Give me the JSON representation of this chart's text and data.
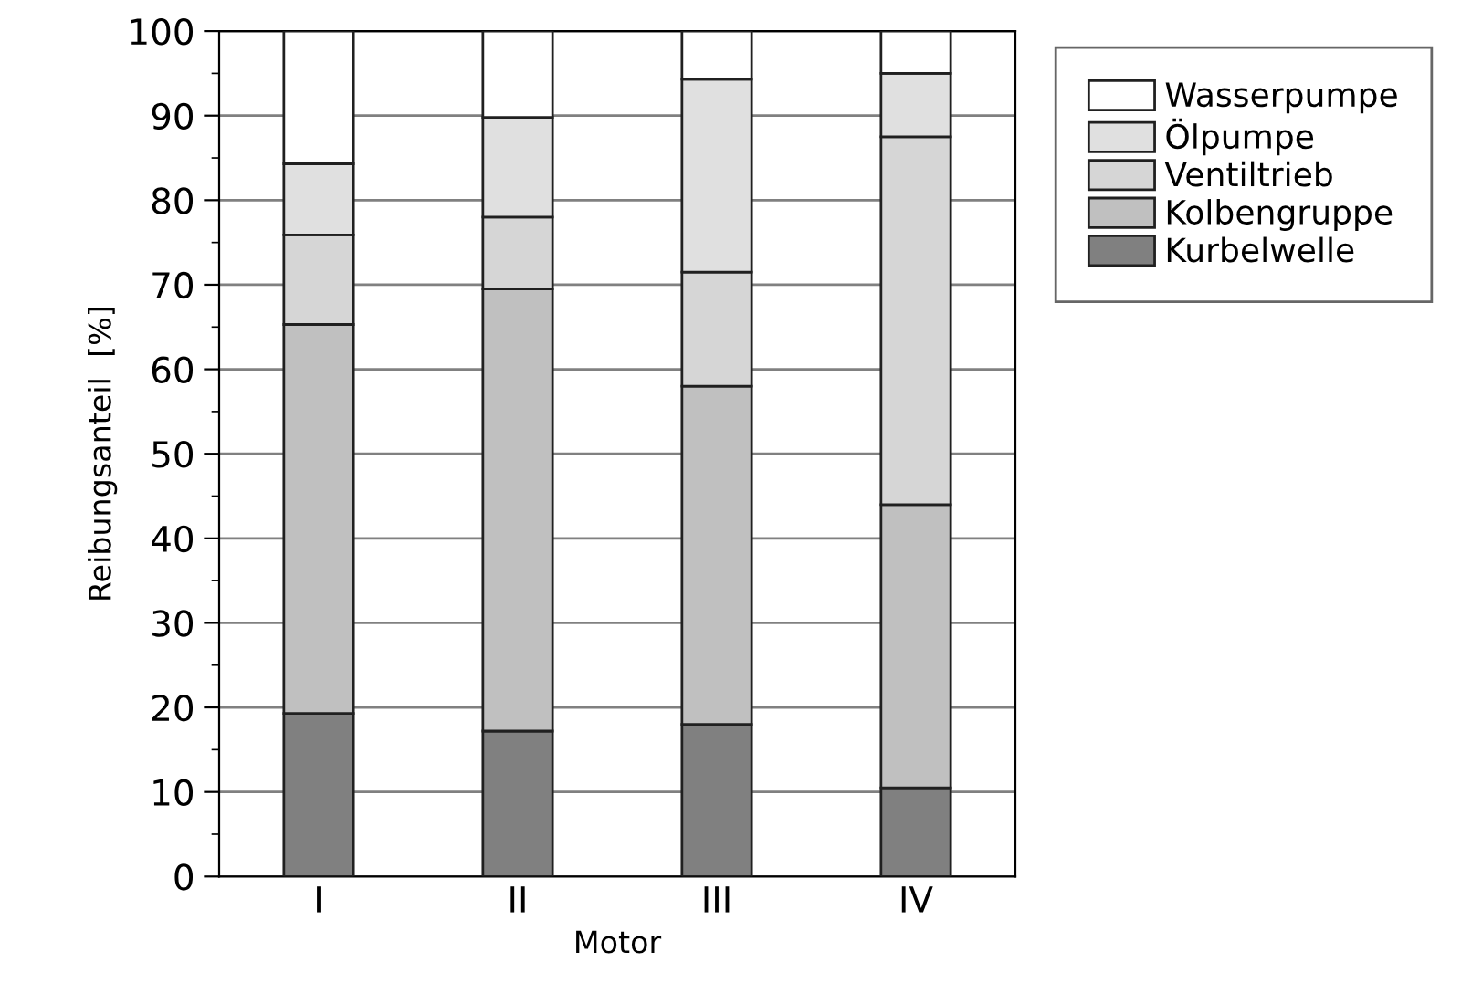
{
  "chart_data": {
    "type": "bar",
    "stacked": true,
    "xlabel": "Motor",
    "ylabel": "Reibungsanteil  [%]",
    "categories": [
      "I",
      "II",
      "III",
      "IV"
    ],
    "series": [
      {
        "name": "Kurbelwelle",
        "color": "#808080",
        "values": [
          19.3,
          17.2,
          18.0,
          10.5
        ]
      },
      {
        "name": "Kolbengruppe",
        "color": "#c0c0c0",
        "values": [
          46.0,
          52.3,
          40.0,
          33.5
        ]
      },
      {
        "name": "Ventiltrieb",
        "color": "#d6d6d6",
        "values": [
          10.6,
          8.5,
          13.5,
          43.5
        ]
      },
      {
        "name": "Ölpumpe",
        "color": "#e0e0e0",
        "values": [
          8.4,
          11.8,
          22.8,
          7.5
        ]
      },
      {
        "name": "Wasserpumpe",
        "color": "#ffffff",
        "values": [
          15.7,
          10.2,
          5.7,
          5.0
        ]
      }
    ],
    "ylim": [
      0,
      100
    ],
    "yticks": [
      0,
      {
        "value": 5,
        "label": null
      },
      10,
      {
        "value": 15,
        "label": null
      },
      20,
      {
        "value": 25,
        "label": null
      },
      30,
      {
        "value": 35,
        "label": null
      },
      40,
      {
        "value": 45,
        "label": null
      },
      50,
      {
        "value": 55,
        "label": null
      },
      60,
      {
        "value": 65,
        "label": null
      },
      70,
      {
        "value": 75,
        "label": null
      },
      80,
      {
        "value": 85,
        "label": null
      },
      90,
      {
        "value": 95,
        "label": null
      },
      100
    ],
    "grid": "y",
    "legend": "top right"
  }
}
